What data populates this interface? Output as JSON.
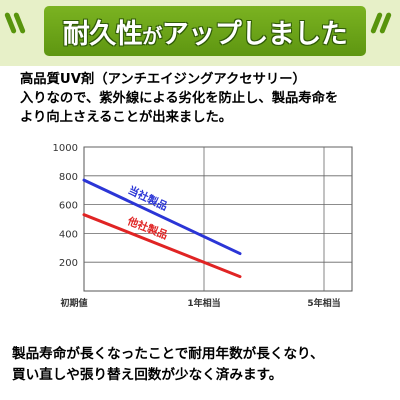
{
  "header": {
    "title_main": "耐久性",
    "title_ga": "が",
    "title_rest": "アップしました"
  },
  "intro": {
    "line1": "高品質UV剤（アンチエイジングアクセサリー）",
    "line2": "入りなので、紫外線による劣化を防止し、製品寿命を",
    "line3": "より向上さえることが出来ました。"
  },
  "chart_data": {
    "type": "line",
    "title": "",
    "xlabel": "",
    "ylabel": "",
    "x_ticks": [
      "初期値",
      "1年相当",
      "5年相当"
    ],
    "y_ticks": [
      1000,
      800,
      600,
      400,
      200
    ],
    "ylim": [
      0,
      1000
    ],
    "grid": true,
    "series": [
      {
        "name": "当社製品",
        "color": "#2b35d6",
        "points": [
          [
            0,
            770
          ],
          [
            1.3,
            260
          ]
        ]
      },
      {
        "name": "他社製品",
        "color": "#e02424",
        "points": [
          [
            0,
            530
          ],
          [
            1.3,
            100
          ]
        ]
      }
    ]
  },
  "footer": {
    "line1": "製品寿命が長くなったことで耐用年数が長くなり、",
    "line2": "買い直しや張り替え回数が少なく済みます。"
  }
}
